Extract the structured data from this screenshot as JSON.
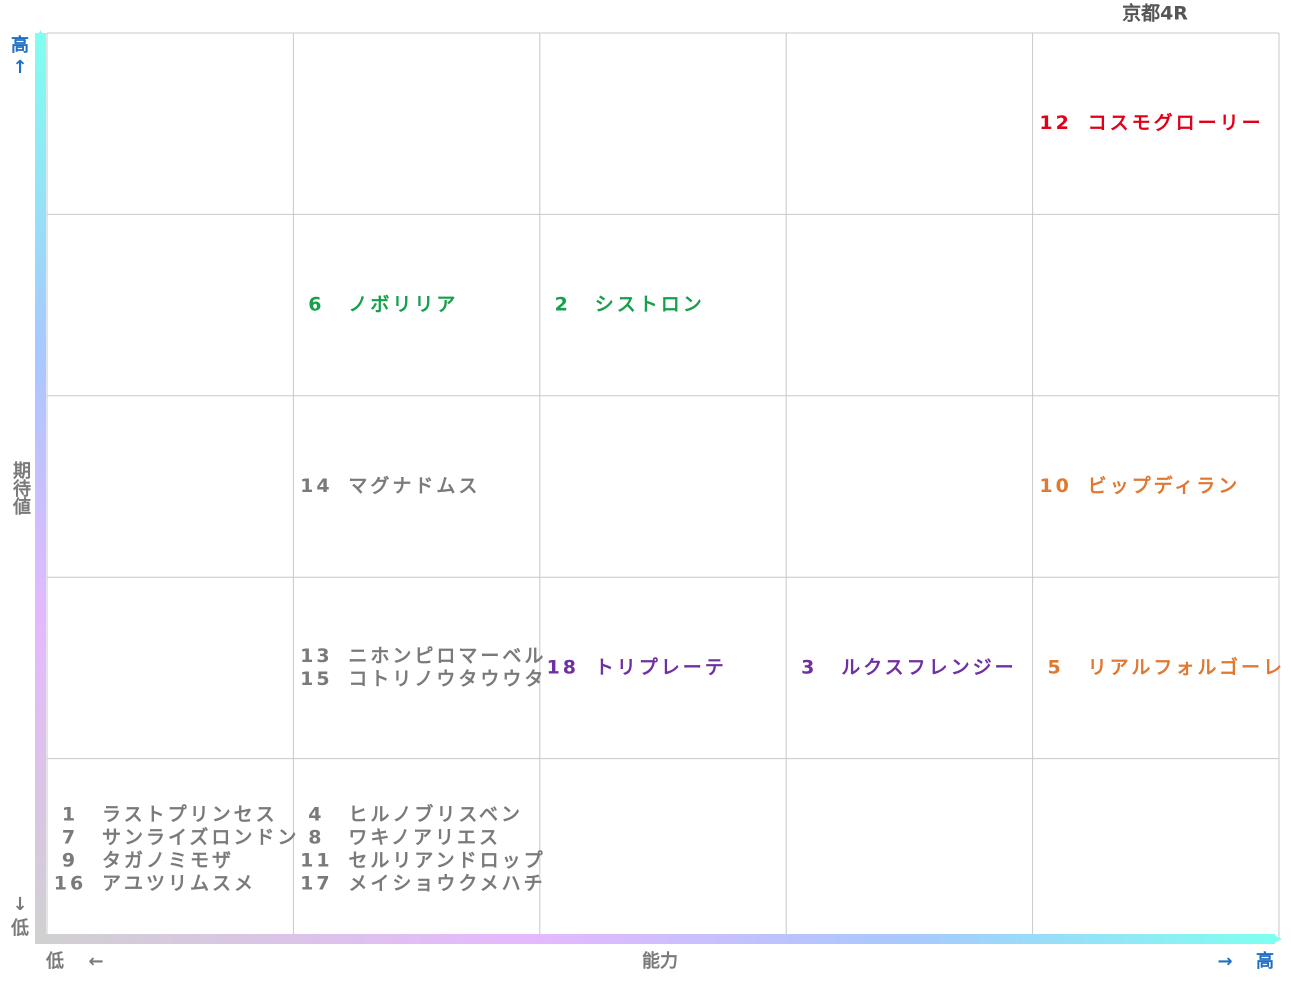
{
  "header": {
    "title": "京都4R"
  },
  "axes": {
    "y_label": "期待値",
    "y_high": "高",
    "y_high_arrow": "↑",
    "y_low_arrow": "↓",
    "y_low": "低",
    "x_label": "能力",
    "x_low": "低",
    "x_low_arrow": "←",
    "x_high_arrow": "→",
    "x_high": "高"
  },
  "grid": [
    [
      [],
      [],
      [],
      [],
      [
        {
          "number": 12,
          "name": "コスモグローリー",
          "color": "#e00018"
        }
      ]
    ],
    [
      [],
      [
        {
          "number": 6,
          "name": "ノボリリア",
          "color": "#17a04c"
        }
      ],
      [
        {
          "number": 2,
          "name": "シストロン",
          "color": "#17a04c"
        }
      ],
      [],
      []
    ],
    [
      [],
      [
        {
          "number": 14,
          "name": "マグナドムス",
          "color": "#7a7a7a"
        }
      ],
      [],
      [],
      [
        {
          "number": 10,
          "name": "ビップディラン",
          "color": "#e07830"
        }
      ]
    ],
    [
      [],
      [
        {
          "number": 13,
          "name": "ニホンピロマーベル",
          "color": "#7a7a7a"
        },
        {
          "number": 15,
          "name": "コトリノウタウウタ",
          "color": "#7a7a7a"
        }
      ],
      [
        {
          "number": 18,
          "name": "トリプレーテ",
          "color": "#7030a0"
        }
      ],
      [
        {
          "number": 3,
          "name": "ルクスフレンジー",
          "color": "#7030a0"
        }
      ],
      [
        {
          "number": 5,
          "name": "リアルフォルゴーレ",
          "color": "#e07830"
        }
      ]
    ],
    [
      [
        {
          "number": 1,
          "name": "ラストプリンセス",
          "color": "#7a7a7a"
        },
        {
          "number": 7,
          "name": "サンライズロンドン",
          "color": "#7a7a7a"
        },
        {
          "number": 9,
          "name": "タガノミモザ",
          "color": "#7a7a7a"
        },
        {
          "number": 16,
          "name": "アユツリムスメ",
          "color": "#7a7a7a"
        }
      ],
      [
        {
          "number": 4,
          "name": "ヒルノブリスベン",
          "color": "#7a7a7a"
        },
        {
          "number": 8,
          "name": "ワキノアリエス",
          "color": "#7a7a7a"
        },
        {
          "number": 11,
          "name": "セルリアンドロップ",
          "color": "#7a7a7a"
        },
        {
          "number": 17,
          "name": "メイショウクメハチ",
          "color": "#7a7a7a"
        }
      ],
      [],
      [],
      []
    ]
  ]
}
